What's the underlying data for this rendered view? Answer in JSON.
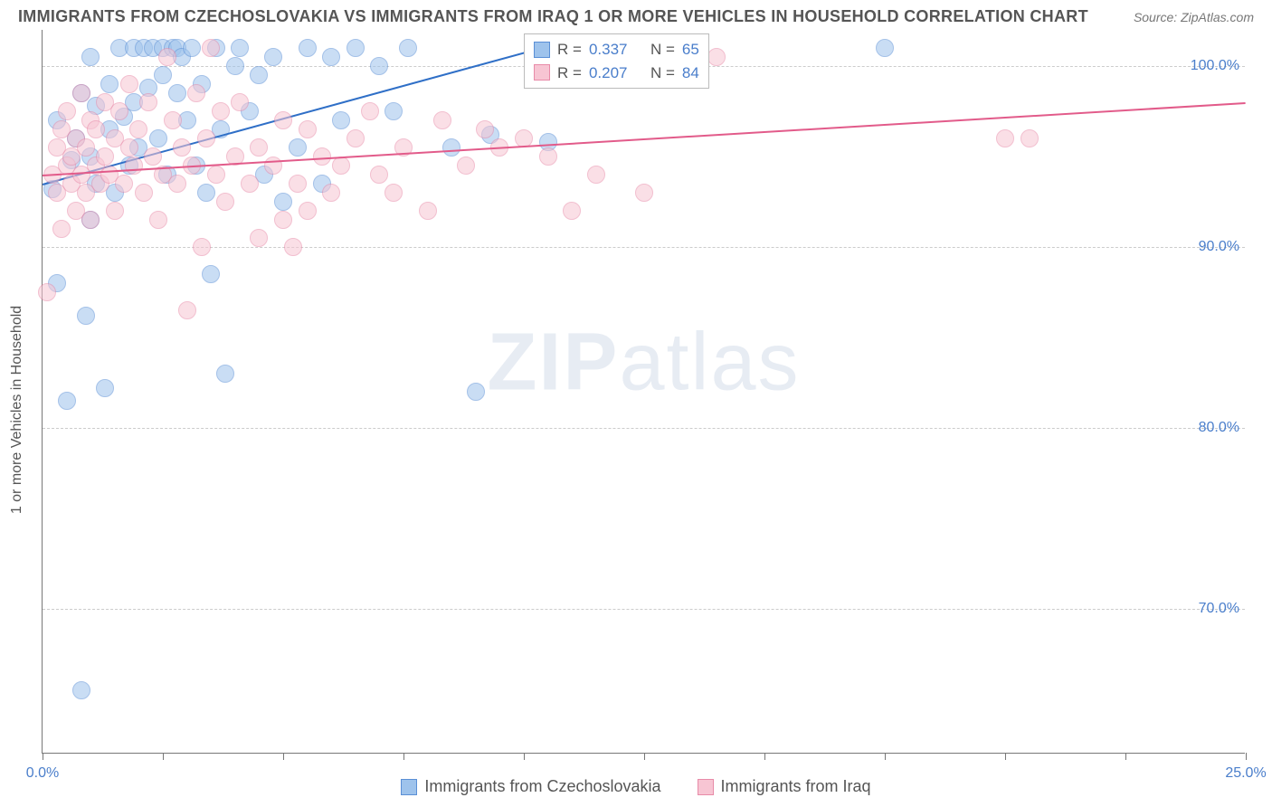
{
  "title": "IMMIGRANTS FROM CZECHOSLOVAKIA VS IMMIGRANTS FROM IRAQ 1 OR MORE VEHICLES IN HOUSEHOLD CORRELATION CHART",
  "source": "Source: ZipAtlas.com",
  "watermark_a": "ZIP",
  "watermark_b": "atlas",
  "chart": {
    "type": "scatter",
    "yaxis_title": "1 or more Vehicles in Household",
    "xlim": [
      0,
      25
    ],
    "ylim": [
      62,
      102
    ],
    "yticks": [
      70,
      80,
      90,
      100
    ],
    "ytick_labels": [
      "70.0%",
      "80.0%",
      "90.0%",
      "100.0%"
    ],
    "xticks": [
      0,
      2.5,
      5,
      7.5,
      10,
      12.5,
      15,
      17.5,
      20,
      22.5,
      25
    ],
    "xtick_labels_shown": {
      "0": "0.0%",
      "25": "25.0%"
    },
    "grid_color": "#cccccc",
    "axis_color": "#777777",
    "background_color": "#ffffff",
    "tick_label_color": "#4a7ecb",
    "tick_label_fontsize": 16,
    "marker_radius": 10,
    "marker_opacity": 0.55,
    "marker_border_width": 1,
    "trend_line_width": 2
  },
  "series": [
    {
      "key": "czech",
      "label": "Immigrants from Czechoslovakia",
      "fill": "#9ec3ec",
      "stroke": "#5a8fd6",
      "trend_color": "#2f6fc7",
      "R": "0.337",
      "N": "65",
      "trend": {
        "x1": 0,
        "y1": 93.5,
        "x2": 11,
        "y2": 101.5
      },
      "points": [
        [
          0.2,
          93.2
        ],
        [
          0.3,
          97.0
        ],
        [
          0.3,
          88.0
        ],
        [
          0.5,
          81.5
        ],
        [
          0.6,
          94.8
        ],
        [
          0.7,
          96.0
        ],
        [
          0.8,
          65.5
        ],
        [
          0.8,
          98.5
        ],
        [
          0.9,
          86.2
        ],
        [
          1.0,
          100.5
        ],
        [
          1.0,
          95.0
        ],
        [
          1.0,
          91.5
        ],
        [
          1.1,
          93.5
        ],
        [
          1.1,
          97.8
        ],
        [
          1.3,
          82.2
        ],
        [
          1.4,
          99.0
        ],
        [
          1.4,
          96.5
        ],
        [
          1.5,
          93.0
        ],
        [
          1.6,
          101.0
        ],
        [
          1.7,
          97.2
        ],
        [
          1.8,
          94.5
        ],
        [
          1.9,
          101.0
        ],
        [
          1.9,
          98.0
        ],
        [
          2.0,
          95.5
        ],
        [
          2.1,
          101.0
        ],
        [
          2.2,
          98.8
        ],
        [
          2.3,
          101.0
        ],
        [
          2.4,
          96.0
        ],
        [
          2.5,
          99.5
        ],
        [
          2.5,
          101.0
        ],
        [
          2.6,
          94.0
        ],
        [
          2.7,
          101.0
        ],
        [
          2.8,
          98.5
        ],
        [
          2.8,
          101.0
        ],
        [
          2.9,
          100.5
        ],
        [
          3.0,
          97.0
        ],
        [
          3.1,
          101.0
        ],
        [
          3.2,
          94.5
        ],
        [
          3.3,
          99.0
        ],
        [
          3.4,
          93.0
        ],
        [
          3.5,
          88.5
        ],
        [
          3.6,
          101.0
        ],
        [
          3.7,
          96.5
        ],
        [
          3.8,
          83.0
        ],
        [
          4.0,
          100.0
        ],
        [
          4.1,
          101.0
        ],
        [
          4.3,
          97.5
        ],
        [
          4.5,
          99.5
        ],
        [
          4.6,
          94.0
        ],
        [
          4.8,
          100.5
        ],
        [
          5.0,
          92.5
        ],
        [
          5.3,
          95.5
        ],
        [
          5.5,
          101.0
        ],
        [
          5.8,
          93.5
        ],
        [
          6.0,
          100.5
        ],
        [
          6.2,
          97.0
        ],
        [
          6.5,
          101.0
        ],
        [
          7.0,
          100.0
        ],
        [
          7.3,
          97.5
        ],
        [
          7.6,
          101.0
        ],
        [
          8.5,
          95.5
        ],
        [
          9.0,
          82.0
        ],
        [
          9.3,
          96.2
        ],
        [
          10.5,
          95.8
        ],
        [
          17.5,
          101.0
        ]
      ]
    },
    {
      "key": "iraq",
      "label": "Immigrants from Iraq",
      "fill": "#f7c5d3",
      "stroke": "#e88ba8",
      "trend_color": "#e25b8a",
      "R": "0.207",
      "N": "84",
      "trend": {
        "x1": 0,
        "y1": 94.0,
        "x2": 25,
        "y2": 98.0
      },
      "points": [
        [
          0.1,
          87.5
        ],
        [
          0.2,
          94.0
        ],
        [
          0.3,
          95.5
        ],
        [
          0.3,
          93.0
        ],
        [
          0.4,
          96.5
        ],
        [
          0.4,
          91.0
        ],
        [
          0.5,
          94.5
        ],
        [
          0.5,
          97.5
        ],
        [
          0.6,
          93.5
        ],
        [
          0.6,
          95.0
        ],
        [
          0.7,
          92.0
        ],
        [
          0.7,
          96.0
        ],
        [
          0.8,
          94.0
        ],
        [
          0.8,
          98.5
        ],
        [
          0.9,
          93.0
        ],
        [
          0.9,
          95.5
        ],
        [
          1.0,
          97.0
        ],
        [
          1.0,
          91.5
        ],
        [
          1.1,
          94.5
        ],
        [
          1.1,
          96.5
        ],
        [
          1.2,
          93.5
        ],
        [
          1.3,
          95.0
        ],
        [
          1.3,
          98.0
        ],
        [
          1.4,
          94.0
        ],
        [
          1.5,
          96.0
        ],
        [
          1.5,
          92.0
        ],
        [
          1.6,
          97.5
        ],
        [
          1.7,
          93.5
        ],
        [
          1.8,
          95.5
        ],
        [
          1.8,
          99.0
        ],
        [
          1.9,
          94.5
        ],
        [
          2.0,
          96.5
        ],
        [
          2.1,
          93.0
        ],
        [
          2.2,
          98.0
        ],
        [
          2.3,
          95.0
        ],
        [
          2.4,
          91.5
        ],
        [
          2.5,
          94.0
        ],
        [
          2.6,
          100.5
        ],
        [
          2.7,
          97.0
        ],
        [
          2.8,
          93.5
        ],
        [
          2.9,
          95.5
        ],
        [
          3.0,
          86.5
        ],
        [
          3.1,
          94.5
        ],
        [
          3.2,
          98.5
        ],
        [
          3.3,
          90.0
        ],
        [
          3.4,
          96.0
        ],
        [
          3.5,
          101.0
        ],
        [
          3.6,
          94.0
        ],
        [
          3.7,
          97.5
        ],
        [
          3.8,
          92.5
        ],
        [
          4.0,
          95.0
        ],
        [
          4.1,
          98.0
        ],
        [
          4.3,
          93.5
        ],
        [
          4.5,
          90.5
        ],
        [
          4.5,
          95.5
        ],
        [
          4.8,
          94.5
        ],
        [
          5.0,
          97.0
        ],
        [
          5.0,
          91.5
        ],
        [
          5.2,
          90.0
        ],
        [
          5.3,
          93.5
        ],
        [
          5.5,
          96.5
        ],
        [
          5.5,
          92.0
        ],
        [
          5.8,
          95.0
        ],
        [
          6.0,
          93.0
        ],
        [
          6.2,
          94.5
        ],
        [
          6.5,
          96.0
        ],
        [
          6.8,
          97.5
        ],
        [
          7.0,
          94.0
        ],
        [
          7.3,
          93.0
        ],
        [
          7.5,
          95.5
        ],
        [
          8.0,
          92.0
        ],
        [
          8.3,
          97.0
        ],
        [
          8.8,
          94.5
        ],
        [
          9.2,
          96.5
        ],
        [
          9.5,
          95.5
        ],
        [
          10.0,
          96.0
        ],
        [
          10.5,
          95.0
        ],
        [
          11.0,
          92.0
        ],
        [
          11.5,
          94.0
        ],
        [
          12.5,
          93.0
        ],
        [
          13.5,
          101.0
        ],
        [
          14.0,
          100.5
        ],
        [
          20.0,
          96.0
        ],
        [
          20.5,
          96.0
        ]
      ]
    }
  ],
  "legend": {
    "R_label": "R =",
    "N_label": "N ="
  }
}
